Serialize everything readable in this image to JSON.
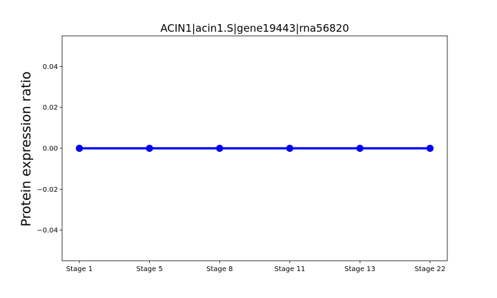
{
  "chart_data": {
    "type": "line",
    "title": "ACIN1|acin1.S|gene19443|rna56820",
    "xlabel": "",
    "ylabel": "Protein expression ratio",
    "categories": [
      "Stage 1",
      "Stage 5",
      "Stage 8",
      "Stage 11",
      "Stage 13",
      "Stage 22"
    ],
    "series": [
      {
        "values": [
          0,
          0,
          0,
          0,
          0,
          0
        ],
        "color": "#0000ff"
      }
    ],
    "ylim": [
      -0.055,
      0.055
    ],
    "yticks": [
      -0.04,
      -0.02,
      0.0,
      0.02,
      0.04
    ],
    "ytick_labels": [
      "−0.04",
      "−0.02",
      "0.00",
      "0.02",
      "0.04"
    ],
    "grid": false,
    "legend": "none"
  }
}
